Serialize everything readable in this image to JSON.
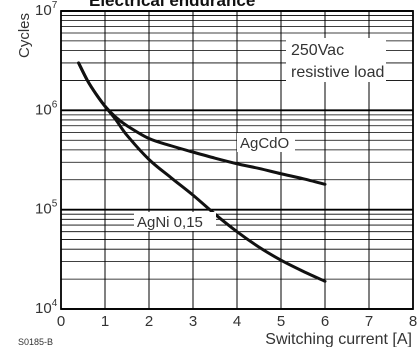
{
  "chart_data": {
    "type": "line",
    "title": "Electrical endurance",
    "xlabel": "Switching current [A]",
    "ylabel": "Cycles",
    "x_scale": "linear",
    "y_scale": "log",
    "xlim": [
      0,
      8
    ],
    "ylim": [
      10000,
      10000000
    ],
    "x_ticks": [
      "0",
      "1",
      "2",
      "3",
      "4",
      "5",
      "6",
      "7",
      "8"
    ],
    "y_ticks": [
      {
        "base": "10",
        "exp": "4",
        "value": 10000
      },
      {
        "base": "10",
        "exp": "5",
        "value": 100000
      },
      {
        "base": "10",
        "exp": "6",
        "value": 1000000
      },
      {
        "base": "10",
        "exp": "7",
        "value": 10000000
      }
    ],
    "grid": true,
    "annotation": "250Vac resistive load",
    "annotation_lines": [
      "250Vac",
      "resistive load"
    ],
    "figure_code": "S0185-B",
    "series": [
      {
        "name": "AgCdO",
        "x": [
          0.4,
          0.6,
          0.8,
          1.0,
          1.25,
          1.5,
          2.0,
          2.5,
          3.0,
          3.5,
          4.0,
          4.5,
          5.0,
          5.5,
          6.0
        ],
        "y": [
          3000000,
          2000000,
          1450000,
          1100000,
          850000,
          700000,
          520000,
          440000,
          380000,
          330000,
          290000,
          260000,
          230000,
          205000,
          180000
        ]
      },
      {
        "name": "AgNi 0,15",
        "x": [
          0.4,
          0.6,
          0.8,
          1.0,
          1.25,
          1.5,
          2.0,
          2.5,
          3.0,
          3.5,
          4.0,
          4.5,
          5.0,
          5.5,
          6.0
        ],
        "y": [
          3000000,
          2000000,
          1450000,
          1100000,
          800000,
          560000,
          320000,
          210000,
          140000,
          90000,
          60000,
          42000,
          31000,
          24000,
          19000
        ]
      }
    ]
  }
}
